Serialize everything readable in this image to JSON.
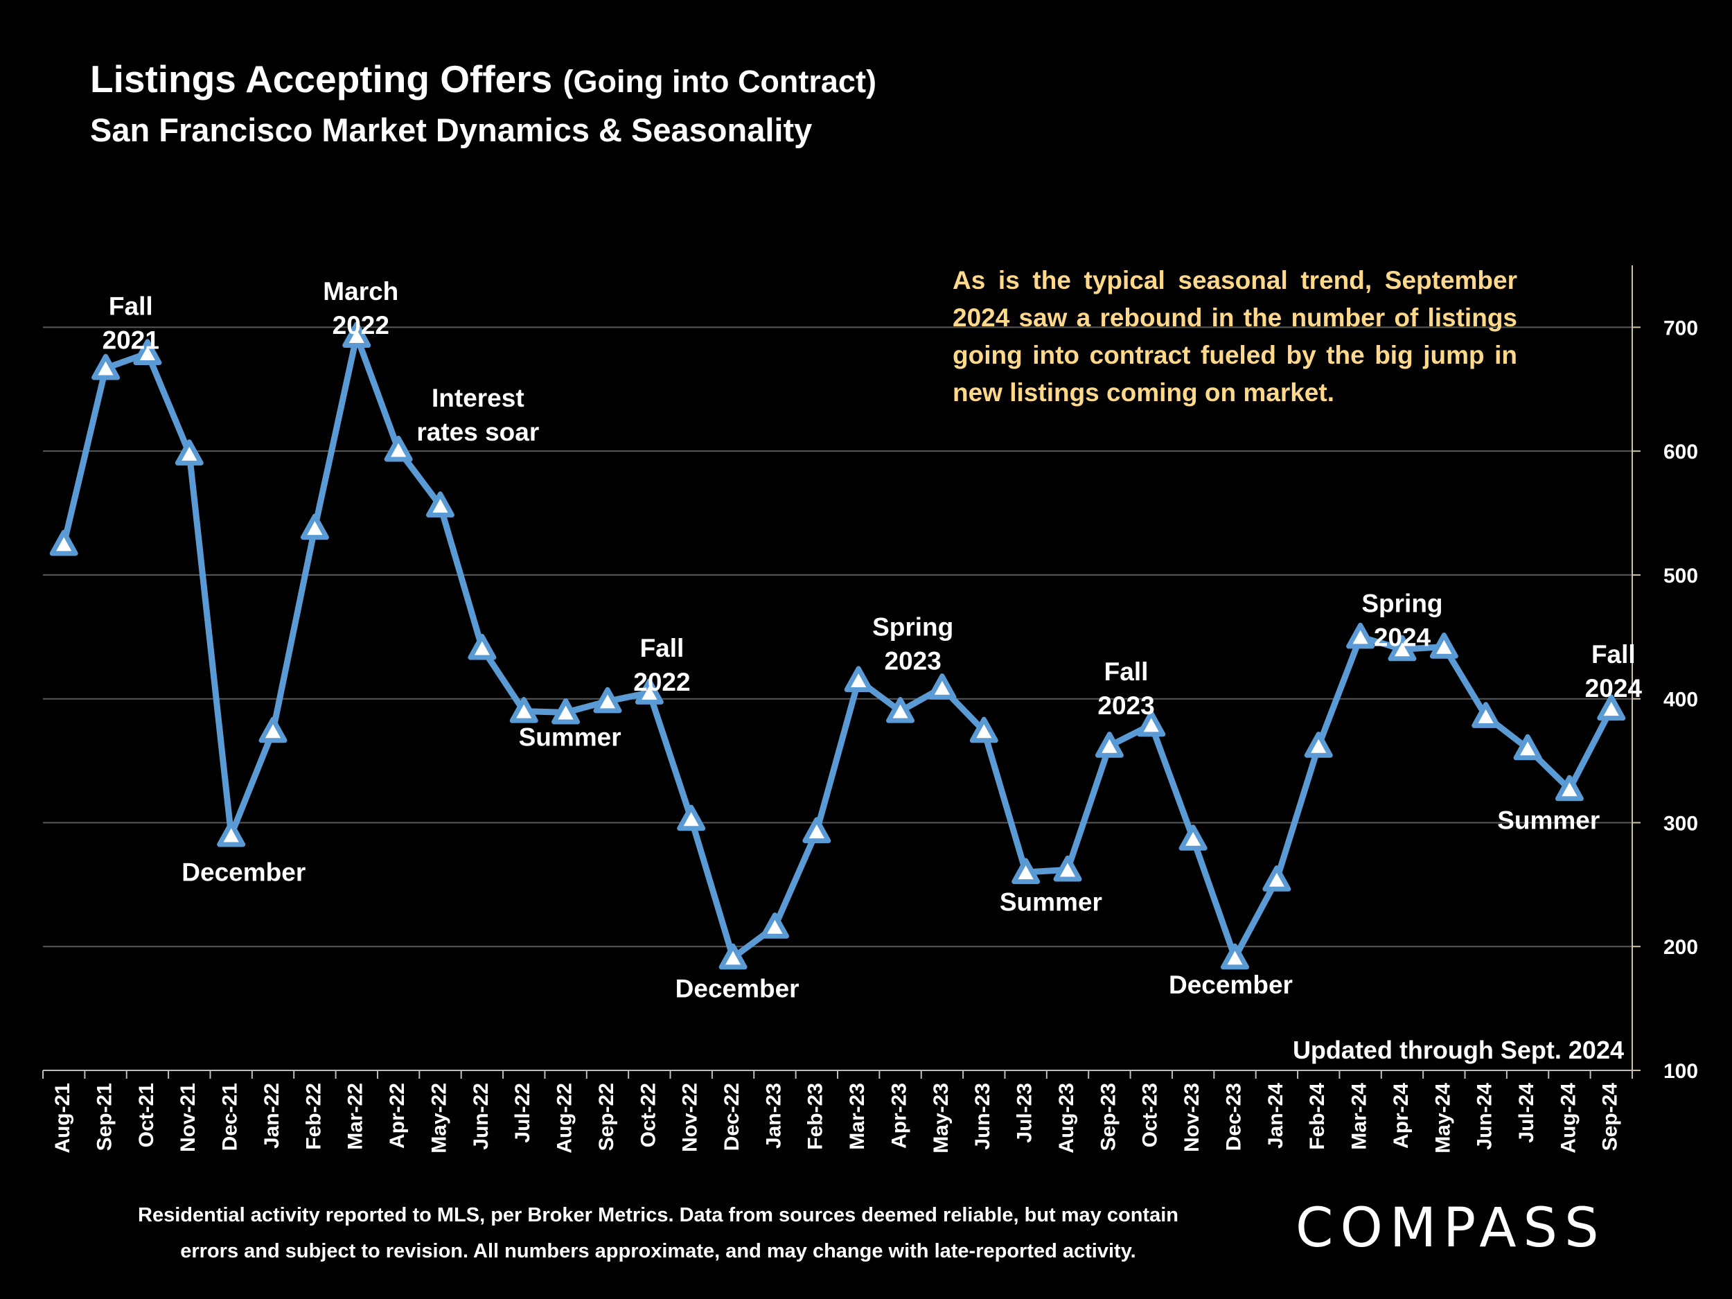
{
  "header": {
    "title": "Listings Accepting Offers",
    "title_paren": "(Going into Contract)",
    "subtitle": "San Francisco Market Dynamics & Seasonality"
  },
  "annotation_box": {
    "text": "As is the typical seasonal trend, September 2024 saw a rebound in the number of listings going into contract fueled by the big jump in new listings coming on market."
  },
  "chart_data": {
    "type": "line",
    "title": "Listings Accepting Offers (Going into Contract)",
    "categories": [
      "Aug-21",
      "Sep-21",
      "Oct-21",
      "Nov-21",
      "Dec-21",
      "Jan-22",
      "Feb-22",
      "Mar-22",
      "Apr-22",
      "May-22",
      "Jun-22",
      "Jul-22",
      "Aug-22",
      "Sep-22",
      "Oct-22",
      "Nov-22",
      "Dec-22",
      "Jan-23",
      "Feb-23",
      "Mar-23",
      "Apr-23",
      "May-23",
      "Jun-23",
      "Jul-23",
      "Aug-23",
      "Sep-23",
      "Oct-23",
      "Nov-23",
      "Dec-23",
      "Jan-24",
      "Feb-24",
      "Mar-24",
      "Apr-24",
      "May-24",
      "Jun-24",
      "Jul-24",
      "Aug-24",
      "Sep-24"
    ],
    "series": [
      {
        "name": "Listings Accepting Offers",
        "values": [
          525,
          667,
          679,
          598,
          290,
          374,
          538,
          693,
          601,
          556,
          441,
          390,
          389,
          398,
          405,
          303,
          191,
          216,
          293,
          415,
          390,
          409,
          374,
          260,
          262,
          362,
          379,
          287,
          191,
          254,
          362,
          450,
          440,
          442,
          386,
          360,
          327,
          392
        ],
        "color": "#5b9bd5"
      }
    ],
    "ylim": [
      100,
      750
    ],
    "yticks": [
      100,
      200,
      300,
      400,
      500,
      600,
      700
    ],
    "y_axis_side": "right",
    "grid": true,
    "updated_note": "Updated through Sept. 2024",
    "annotations": [
      {
        "lines": [
          "Fall",
          "2021"
        ],
        "anchor_index": 1.6,
        "value": 710
      },
      {
        "lines": [
          "March",
          "2022"
        ],
        "anchor_index": 7.1,
        "value": 722
      },
      {
        "lines": [
          "Interest",
          "rates soar"
        ],
        "anchor_index": 9.9,
        "value": 636
      },
      {
        "lines": [
          "December"
        ],
        "anchor_index": 4.3,
        "value": 253
      },
      {
        "lines": [
          "Summer"
        ],
        "anchor_index": 12.1,
        "value": 362
      },
      {
        "lines": [
          "Fall",
          "2022"
        ],
        "anchor_index": 14.3,
        "value": 434
      },
      {
        "lines": [
          "December"
        ],
        "anchor_index": 16.1,
        "value": 159
      },
      {
        "lines": [
          "Spring",
          "2023"
        ],
        "anchor_index": 20.3,
        "value": 451
      },
      {
        "lines": [
          "Summer"
        ],
        "anchor_index": 23.6,
        "value": 229
      },
      {
        "lines": [
          "Fall",
          "2023"
        ],
        "anchor_index": 25.4,
        "value": 415
      },
      {
        "lines": [
          "December"
        ],
        "anchor_index": 27.9,
        "value": 162
      },
      {
        "lines": [
          "Spring",
          "2024"
        ],
        "anchor_index": 32.0,
        "value": 470
      },
      {
        "lines": [
          "Summer"
        ],
        "anchor_index": 35.5,
        "value": 295
      },
      {
        "lines": [
          "Fall",
          "2024"
        ],
        "anchor_index": 37.05,
        "value": 429
      }
    ]
  },
  "footer": {
    "note_line1": "Residential activity reported to MLS, per Broker Metrics. Data from sources deemed reliable, but may contain",
    "note_line2": "errors and subject to revision. All numbers approximate, and may change with late-reported activity.",
    "logo_text": "COMPASS"
  },
  "colors": {
    "background": "#000000",
    "line": "#5b9bd5",
    "annotation_box_text": "#ffd88a",
    "gridline": "#595959"
  }
}
